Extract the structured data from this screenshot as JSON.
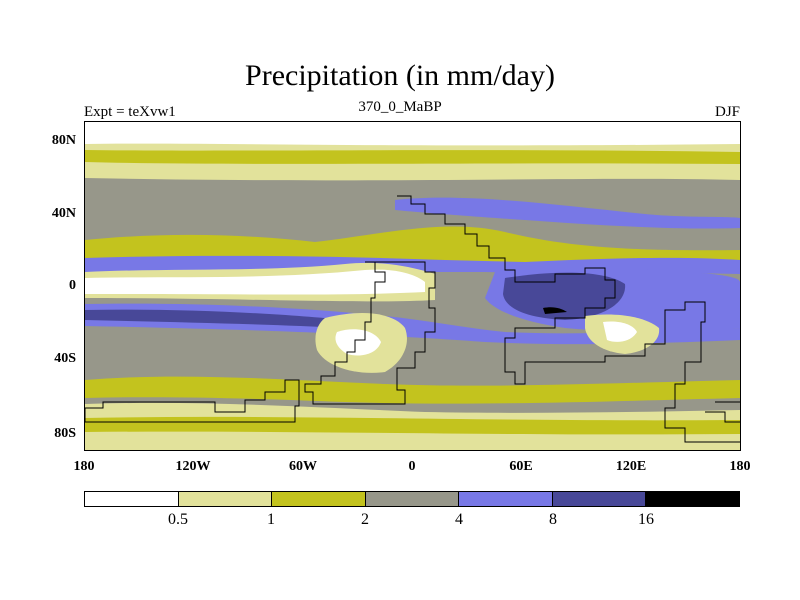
{
  "title": "Precipitation (in mm/day)",
  "left_label": "Expt = teXvw1",
  "center_label": "370_0_MaBP",
  "right_label": "DJF",
  "y_axis_ticks": [
    "80N",
    "40N",
    "0",
    "40S",
    "80S"
  ],
  "x_axis_ticks": [
    "180",
    "120W",
    "60W",
    "0",
    "60E",
    "120E",
    "180"
  ],
  "colorbar": {
    "labels": [
      "0.5",
      "1",
      "2",
      "4",
      "8",
      "16"
    ],
    "colors": [
      "#ffffff",
      "#e2e29b",
      "#c3c31e",
      "#97978a",
      "#7878e6",
      "#484898",
      "#000000"
    ]
  },
  "chart_data": {
    "type": "heatmap",
    "title": "Precipitation (in mm/day)",
    "units": "mm/day",
    "experiment": "teXvw1",
    "period": "370_0_MaBP",
    "season": "DJF",
    "xlim": [
      -180,
      180
    ],
    "ylim": [
      -90,
      90
    ],
    "contour_levels": [
      0.5,
      1,
      2,
      4,
      8,
      16
    ]
  }
}
